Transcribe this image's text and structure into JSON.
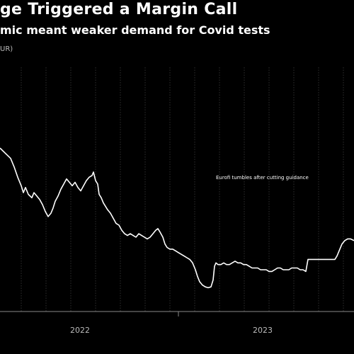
{
  "title": "ge Triggered a Margin Call",
  "subtitle": "mic meant weaker demand for Covid tests",
  "unit_label": "UR)",
  "colors": {
    "background": "#000000",
    "line": "#ffffff",
    "grid": "#4d4d4d"
  },
  "chart_data": {
    "type": "line",
    "title": "ge Triggered a Margin Call",
    "subtitle": "mic meant weaker demand for Covid tests",
    "xlabel": "",
    "ylabel": "UR)",
    "x_ticks": [
      "2022",
      "2023"
    ],
    "grid": "vertical",
    "xlim": [
      0,
      100
    ],
    "ylim": [
      0,
      100
    ],
    "series": [
      {
        "values": [
          [
            0,
            83
          ],
          [
            1.5,
            80
          ],
          [
            3,
            77
          ],
          [
            4,
            72
          ],
          [
            5,
            66
          ],
          [
            6,
            61
          ],
          [
            6.6,
            57
          ],
          [
            7.2,
            60
          ],
          [
            8,
            56
          ],
          [
            9,
            54
          ],
          [
            9.6,
            57
          ],
          [
            10.4,
            55
          ],
          [
            11.2,
            53
          ],
          [
            12,
            50
          ],
          [
            12.8,
            46
          ],
          [
            13.6,
            43
          ],
          [
            14.4,
            45
          ],
          [
            15,
            48
          ],
          [
            15.6,
            52
          ],
          [
            16.4,
            55
          ],
          [
            17.2,
            59
          ],
          [
            18,
            62
          ],
          [
            18.8,
            65
          ],
          [
            19.6,
            63
          ],
          [
            20.4,
            61
          ],
          [
            21.2,
            63
          ],
          [
            22,
            60
          ],
          [
            22.8,
            58
          ],
          [
            23.6,
            61
          ],
          [
            24.4,
            64
          ],
          [
            25.2,
            66
          ],
          [
            26,
            67
          ],
          [
            26.4,
            69
          ],
          [
            27,
            64
          ],
          [
            27.6,
            62
          ],
          [
            28,
            56
          ],
          [
            28.6,
            54
          ],
          [
            29.2,
            51
          ],
          [
            29.8,
            49
          ],
          [
            30.4,
            47
          ],
          [
            31.2,
            45
          ],
          [
            32,
            42
          ],
          [
            32.8,
            39
          ],
          [
            33.6,
            38
          ],
          [
            34.4,
            35
          ],
          [
            35.2,
            33
          ],
          [
            36,
            32
          ],
          [
            36.8,
            33
          ],
          [
            37.6,
            32
          ],
          [
            38.4,
            31
          ],
          [
            39.2,
            33
          ],
          [
            40,
            32
          ],
          [
            40.8,
            31
          ],
          [
            41.6,
            30
          ],
          [
            42.4,
            31
          ],
          [
            43.2,
            33
          ],
          [
            44,
            35
          ],
          [
            44.6,
            36
          ],
          [
            45.2,
            34
          ],
          [
            46,
            31
          ],
          [
            46.6,
            27
          ],
          [
            47.2,
            25
          ],
          [
            48,
            24
          ],
          [
            48.8,
            24
          ],
          [
            49.6,
            23
          ],
          [
            50.4,
            22
          ],
          [
            51.2,
            21
          ],
          [
            52,
            20
          ],
          [
            52.8,
            19
          ],
          [
            53.6,
            18
          ],
          [
            54.4,
            16
          ],
          [
            55.2,
            12
          ],
          [
            55.8,
            8
          ],
          [
            56.4,
            5
          ],
          [
            57.2,
            3
          ],
          [
            58,
            2
          ],
          [
            58.8,
            1.5
          ],
          [
            59.6,
            2
          ],
          [
            60.2,
            6
          ],
          [
            60.6,
            14
          ],
          [
            61,
            16
          ],
          [
            61.6,
            15
          ],
          [
            62.4,
            15
          ],
          [
            63.2,
            16
          ],
          [
            64,
            15
          ],
          [
            64.8,
            15
          ],
          [
            65.6,
            16
          ],
          [
            66.4,
            17
          ],
          [
            67.2,
            16
          ],
          [
            68,
            16
          ],
          [
            68.8,
            15
          ],
          [
            69.6,
            15
          ],
          [
            70.4,
            14
          ],
          [
            71.2,
            13
          ],
          [
            72,
            13
          ],
          [
            72.8,
            13
          ],
          [
            73.6,
            12
          ],
          [
            74.4,
            12
          ],
          [
            75.2,
            12
          ],
          [
            76,
            11
          ],
          [
            76.8,
            11
          ],
          [
            77.6,
            12
          ],
          [
            78.4,
            13
          ],
          [
            79.2,
            13
          ],
          [
            80,
            12
          ],
          [
            80.8,
            12
          ],
          [
            81.6,
            12
          ],
          [
            82.4,
            13
          ],
          [
            83.2,
            13
          ],
          [
            84,
            13
          ],
          [
            84.8,
            12
          ],
          [
            85.6,
            12
          ],
          [
            86.4,
            11
          ],
          [
            87,
            18
          ],
          [
            87.6,
            18
          ],
          [
            88.4,
            18
          ],
          [
            89.2,
            18
          ],
          [
            90,
            18
          ],
          [
            90.8,
            18
          ],
          [
            91.6,
            18
          ],
          [
            92.4,
            18
          ],
          [
            93.2,
            18
          ],
          [
            94,
            18
          ],
          [
            94.6,
            18
          ],
          [
            95.2,
            20
          ],
          [
            95.8,
            23
          ],
          [
            96.6,
            27
          ],
          [
            97.4,
            29
          ],
          [
            98.2,
            30
          ],
          [
            99,
            30
          ],
          [
            100,
            29
          ]
        ]
      }
    ],
    "annotations": [
      {
        "text": "Eurofi tumbles after cutting guidance",
        "x": 60.6,
        "y": 62
      }
    ]
  }
}
